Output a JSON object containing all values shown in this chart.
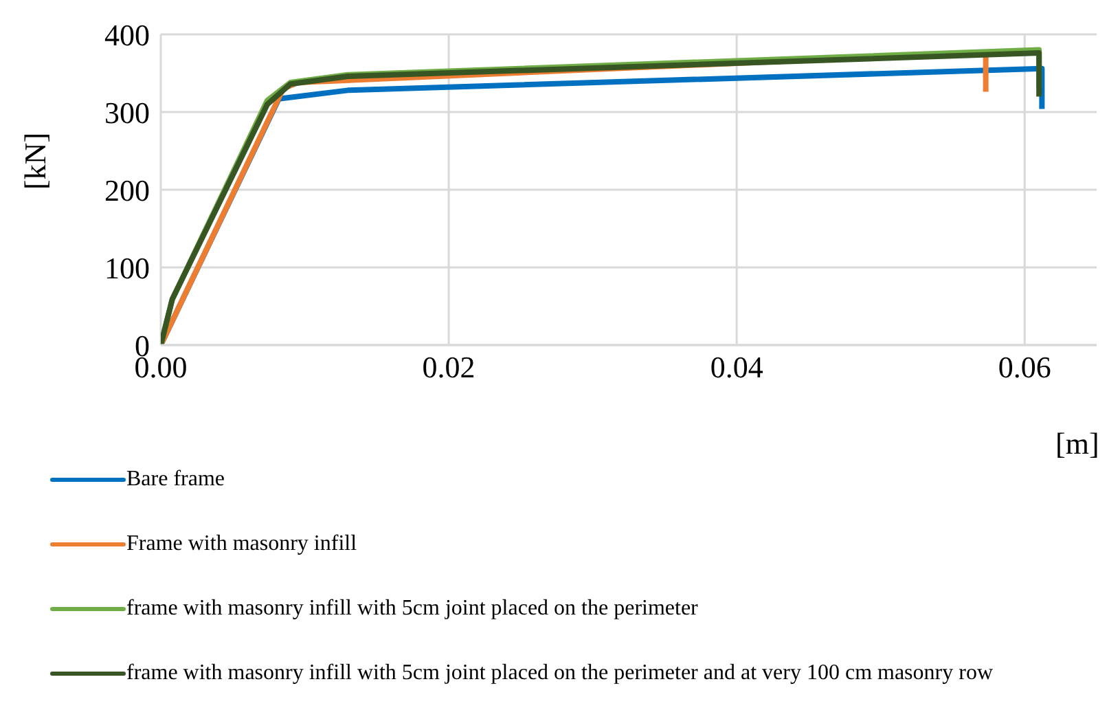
{
  "chart_data": {
    "type": "line",
    "xlabel": "[m]",
    "ylabel": "[kN]",
    "xlim": [
      0,
      0.065
    ],
    "xticks": [
      {
        "value": 0,
        "label": "0.00"
      },
      {
        "value": 0.02,
        "label": "0.02"
      },
      {
        "value": 0.04,
        "label": "0.04"
      },
      {
        "value": 0.06,
        "label": "0.06"
      }
    ],
    "ylim": [
      0,
      400
    ],
    "yticks": [
      0,
      100,
      200,
      300,
      400
    ],
    "grid": true,
    "legend": "bottom",
    "marker": "none",
    "line_style": "solid",
    "series": [
      {
        "name": "Bare frame",
        "color": "#0070c0",
        "x": [
          0,
          0.0082,
          0.013,
          0.0612,
          0.0612
        ],
        "values": [
          0,
          317,
          328,
          356,
          304
        ]
      },
      {
        "name": "Frame with masonry infill",
        "color": "#ed7d31",
        "x": [
          0,
          0.0085,
          0.0095,
          0.0573,
          0.0573
        ],
        "values": [
          0,
          330,
          338,
          377,
          326
        ]
      },
      {
        "name": "frame with masonry infill with 5cm joint placed on the perimeter",
        "color": "#70ad47",
        "x": [
          0,
          0.0008,
          0.0074,
          0.009,
          0.013,
          0.061,
          0.061
        ],
        "values": [
          0,
          59,
          315,
          338,
          348,
          380,
          330
        ]
      },
      {
        "name": "frame with masonry infill with 5cm joint placed on the perimeter and at very 100 cm masonry row",
        "color": "#375623",
        "x": [
          0,
          0.0008,
          0.0074,
          0.009,
          0.013,
          0.061,
          0.061
        ],
        "values": [
          0,
          59,
          310,
          336,
          346,
          376,
          320
        ]
      }
    ]
  }
}
